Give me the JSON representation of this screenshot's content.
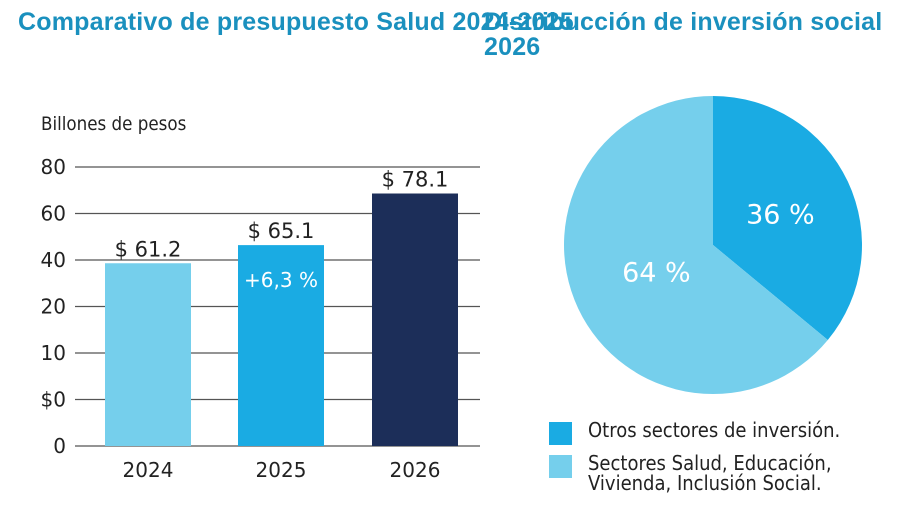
{
  "titles": {
    "left": "Comparativo de presupuesto Salud 2024-2025",
    "right": "Distribucción de inversión social 2026"
  },
  "colors": {
    "title": "#1a90be",
    "bar_2024": "#75cfec",
    "bar_2025": "#1aabe3",
    "bar_2026": "#1c2e59",
    "pie_otros": "#1aabe3",
    "pie_sectores": "#75cfec"
  },
  "chart_data": [
    {
      "type": "bar",
      "title": "Comparativo de presupuesto Salud 2024-2025",
      "ylabel": "Billones de pesos",
      "xlabel": "",
      "categories": [
        "2024",
        "2025",
        "2026"
      ],
      "values": [
        61.2,
        65.1,
        78.1
      ],
      "value_labels": [
        "$ 61.2",
        "$ 65.1",
        "$ 78.1"
      ],
      "bar_fill_fraction_of_axis": [
        0.655,
        0.72,
        0.905
      ],
      "annotations": [
        {
          "category": "2025",
          "text": "+6,3 %"
        }
      ],
      "y_tick_labels": [
        "0",
        "$0",
        "10",
        "20",
        "40",
        "60",
        "80"
      ],
      "grid": true
    },
    {
      "type": "pie",
      "title": "Distribucción de inversión social 2026",
      "slices": [
        {
          "label": "Otros sectores de inversión.",
          "value": 36,
          "display": "36 %"
        },
        {
          "label": "Sectores Salud, Educación, Vivienda, Inclusión Social.",
          "value": 64,
          "display": "64 %"
        }
      ],
      "start": "top",
      "direction": "clockwise",
      "legend": "bottom"
    }
  ]
}
